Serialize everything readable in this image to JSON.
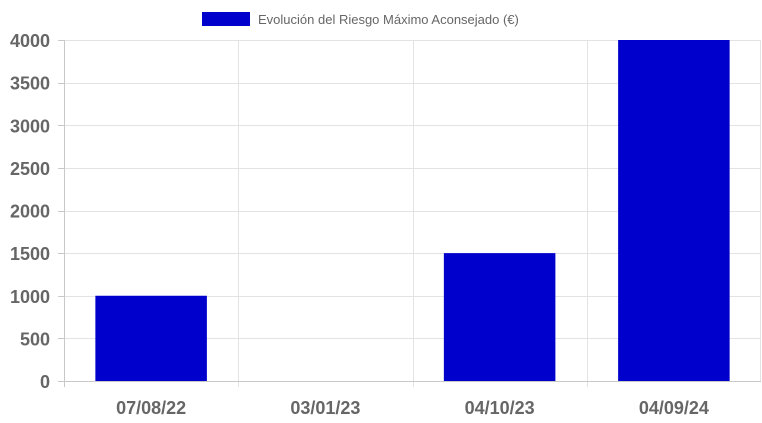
{
  "chart_data": {
    "type": "bar",
    "categories": [
      "07/08/22",
      "03/01/23",
      "04/10/23",
      "04/09/24"
    ],
    "series": [
      {
        "name": "Evolución del Riesgo Máximo Aconsejado (€)",
        "values": [
          1000,
          0,
          1500,
          4000
        ],
        "color": "#0000cc"
      }
    ],
    "ylim": [
      0,
      4000
    ],
    "yticks": [
      "0",
      "500",
      "1000",
      "1500",
      "2000",
      "2500",
      "3000",
      "3500",
      "4000"
    ],
    "grid": true,
    "legend_position": "top-center",
    "title": "",
    "xlabel": "",
    "ylabel": ""
  }
}
